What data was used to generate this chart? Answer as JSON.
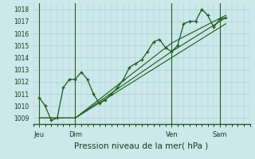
{
  "xlabel": "Pression niveau de la mer( hPa )",
  "ylim": [
    1008.5,
    1018.5
  ],
  "yticks": [
    1009,
    1010,
    1011,
    1012,
    1013,
    1014,
    1015,
    1016,
    1017,
    1018
  ],
  "xlim": [
    0,
    108
  ],
  "bg_color": "#cce8ea",
  "grid_color": "#aacfd2",
  "line_color": "#1a5c1a",
  "vline_color": "#2a5c2a",
  "xtick_labels": [
    "Jeu",
    "Dim",
    "Ven",
    "Sam"
  ],
  "xtick_positions": [
    3,
    21,
    69,
    93
  ],
  "vlines": [
    3,
    21,
    69,
    93
  ],
  "series1": [
    [
      3,
      1010.7
    ],
    [
      6,
      1010.0
    ],
    [
      9,
      1008.8
    ],
    [
      12,
      1009.0
    ],
    [
      15,
      1011.5
    ],
    [
      18,
      1012.2
    ],
    [
      21,
      1012.2
    ],
    [
      24,
      1012.8
    ],
    [
      27,
      1012.2
    ],
    [
      30,
      1011.0
    ],
    [
      33,
      1010.2
    ],
    [
      36,
      1010.5
    ],
    [
      39,
      1011.0
    ],
    [
      42,
      1011.5
    ],
    [
      45,
      1012.2
    ],
    [
      48,
      1013.2
    ],
    [
      51,
      1013.5
    ],
    [
      54,
      1013.8
    ],
    [
      57,
      1014.5
    ],
    [
      60,
      1015.3
    ],
    [
      63,
      1015.5
    ],
    [
      66,
      1014.8
    ],
    [
      69,
      1014.5
    ],
    [
      72,
      1015.0
    ],
    [
      75,
      1016.8
    ],
    [
      78,
      1017.0
    ],
    [
      81,
      1017.0
    ],
    [
      84,
      1018.0
    ],
    [
      87,
      1017.5
    ],
    [
      90,
      1016.5
    ],
    [
      93,
      1017.2
    ],
    [
      96,
      1017.3
    ]
  ],
  "series2": [
    [
      3,
      1009.0
    ],
    [
      21,
      1009.0
    ],
    [
      69,
      1014.5
    ],
    [
      96,
      1017.3
    ]
  ],
  "series3": [
    [
      3,
      1009.0
    ],
    [
      21,
      1009.0
    ],
    [
      69,
      1015.2
    ],
    [
      96,
      1017.5
    ]
  ],
  "series4": [
    [
      3,
      1009.0
    ],
    [
      21,
      1009.0
    ],
    [
      69,
      1014.0
    ],
    [
      96,
      1016.8
    ]
  ]
}
